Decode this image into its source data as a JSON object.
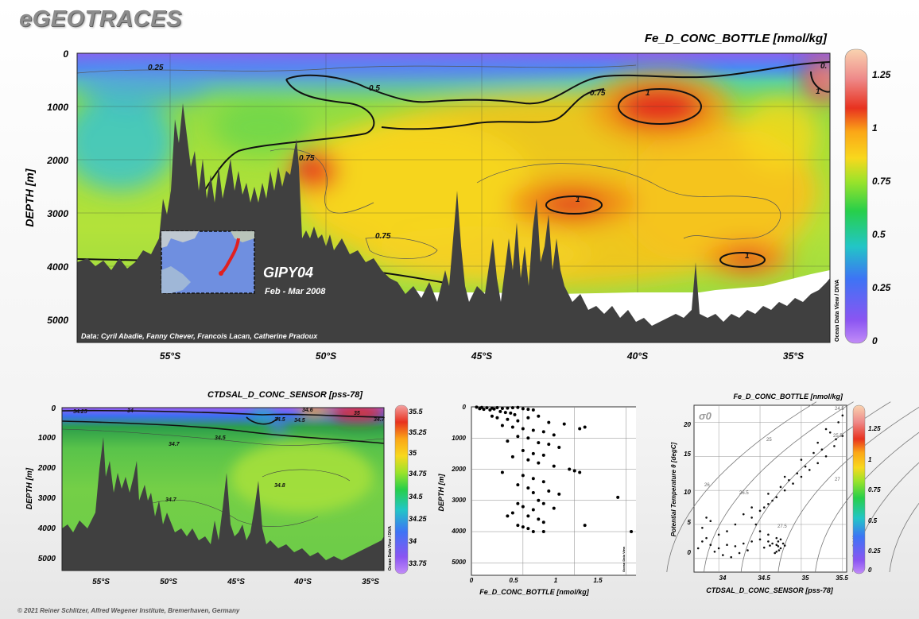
{
  "brand": "eGEOTRACES",
  "footer": "© 2021 Reiner Schlitzer, Alfred Wegener Institute, Bremerhaven, Germany",
  "main_section": {
    "title": "Fe_D_CONC_BOTTLE [nmol/kg]",
    "ylabel": "DEPTH [m]",
    "y_ticks": [
      "0",
      "1000",
      "2000",
      "3000",
      "4000",
      "5000"
    ],
    "x_ticks": [
      "55°S",
      "50°S",
      "45°S",
      "40°S",
      "35°S"
    ],
    "cruise": "GIPY04",
    "dates": "Feb - Mar 2008",
    "credits": "Data: Cyril Abadie, Fanny Chever, Francois Lacan, Catherine Pradoux",
    "odv_label": "Ocean Data View / DIVA",
    "contour_labels": [
      "0.25",
      "0.5",
      "0.75",
      "1",
      "0.75",
      "1",
      "0.75",
      "1",
      "1",
      "0."
    ],
    "colorbar_ticks": [
      "1.25",
      "1",
      "0.75",
      "0.5",
      "0.25",
      "0"
    ]
  },
  "salinity_section": {
    "title": "CTDSAL_D_CONC_SENSOR [pss-78]",
    "ylabel": "DEPTH [m]",
    "y_ticks": [
      "0",
      "1000",
      "2000",
      "3000",
      "4000",
      "5000"
    ],
    "x_ticks": [
      "55°S",
      "50°S",
      "45°S",
      "40°S",
      "35°S"
    ],
    "odv_label": "Ocean Data View / DIVA",
    "contour_labels": [
      "34.25",
      "34",
      "34.5",
      "34.7",
      "34.5",
      "34.8",
      "34.7",
      "34.6",
      "34.5",
      "35",
      "34.7"
    ],
    "colorbar_ticks": [
      "35.5",
      "35.25",
      "35",
      "34.75",
      "34.5",
      "34.25",
      "34",
      "33.75"
    ]
  },
  "scatter_plot": {
    "xlabel": "Fe_D_CONC_BOTTLE [nmol/kg]",
    "ylabel": "DEPTH [m]",
    "odv_label": "Ocean Data View",
    "x_ticks": [
      "0",
      "0.5",
      "1",
      "1.5"
    ],
    "y_ticks": [
      "0",
      "1000",
      "2000",
      "3000",
      "4000",
      "5000"
    ]
  },
  "ts_plot": {
    "title": "Fe_D_CONC_BOTTLE [nmol/kg]",
    "xlabel": "CTDSAL_D_CONC_SENSOR [pss-78]",
    "ylabel": "Potential Temperature θ [degC]",
    "sigma_label": "σ0",
    "odv_label": "Ocean Data View",
    "x_ticks": [
      "34",
      "34.5",
      "35",
      "35.5"
    ],
    "y_ticks": [
      "20",
      "15",
      "10",
      "5",
      "0"
    ],
    "isopycnal_labels": [
      "24.5",
      "25",
      "25.5",
      "26",
      "26.5",
      "27",
      "27.5"
    ],
    "colorbar_ticks": [
      "1.25",
      "1",
      "0.75",
      "0.5",
      "0.25",
      "0"
    ]
  },
  "colors": {
    "scale": [
      "#9b3cf0",
      "#3b6cf5",
      "#22c2c8",
      "#2fd24c",
      "#9be32a",
      "#f7d51d",
      "#fbb117",
      "#e82a1f",
      "#ee8a8a",
      "#f7c7a6"
    ],
    "land": "#404040"
  },
  "chart_data": [
    {
      "type": "heatmap",
      "title": "Fe_D_CONC_BOTTLE [nmol/kg]",
      "xlabel": "",
      "ylabel": "DEPTH [m]",
      "xlim": [
        -58,
        -34
      ],
      "ylim": [
        5400,
        0
      ],
      "colorbar_range": [
        0,
        1.35
      ],
      "highs": [
        {
          "lat": -39.5,
          "depth": 900,
          "value": 1.05
        },
        {
          "lat": -42.3,
          "depth": 2800,
          "value": 1.0
        },
        {
          "lat": -36.0,
          "depth": 3850,
          "value": 1.0
        },
        {
          "lat": -50.5,
          "depth": 2200,
          "value": 0.95
        },
        {
          "lat": -34.2,
          "depth": 500,
          "value": 1.2
        }
      ]
    },
    {
      "type": "heatmap",
      "title": "CTDSAL_D_CONC_SENSOR [pss-78]",
      "ylabel": "DEPTH [m]",
      "xlim": [
        -58,
        -34
      ],
      "ylim": [
        5400,
        0
      ],
      "colorbar_range": [
        33.7,
        35.55
      ]
    },
    {
      "type": "scatter",
      "xlabel": "Fe_D_CONC_BOTTLE [nmol/kg]",
      "ylabel": "DEPTH [m]",
      "xlim": [
        0,
        1.75
      ],
      "ylim": [
        5400,
        0
      ],
      "points": [
        [
          0.05,
          10
        ],
        [
          0.1,
          20
        ],
        [
          0.15,
          30
        ],
        [
          0.2,
          40
        ],
        [
          0.25,
          25
        ],
        [
          0.08,
          60
        ],
        [
          0.12,
          80
        ],
        [
          0.18,
          100
        ],
        [
          0.22,
          70
        ],
        [
          0.3,
          50
        ],
        [
          0.35,
          40
        ],
        [
          0.4,
          30
        ],
        [
          0.45,
          20
        ],
        [
          0.5,
          60
        ],
        [
          0.55,
          80
        ],
        [
          0.6,
          100
        ],
        [
          0.28,
          150
        ],
        [
          0.33,
          180
        ],
        [
          0.38,
          200
        ],
        [
          0.42,
          250
        ],
        [
          0.2,
          300
        ],
        [
          0.25,
          350
        ],
        [
          0.35,
          400
        ],
        [
          0.45,
          450
        ],
        [
          0.55,
          350
        ],
        [
          0.65,
          300
        ],
        [
          0.75,
          500
        ],
        [
          0.9,
          550
        ],
        [
          1.05,
          700
        ],
        [
          1.1,
          650
        ],
        [
          0.3,
          600
        ],
        [
          0.4,
          650
        ],
        [
          0.5,
          700
        ],
        [
          0.6,
          750
        ],
        [
          0.7,
          800
        ],
        [
          0.8,
          900
        ],
        [
          0.45,
          950
        ],
        [
          0.55,
          1000
        ],
        [
          0.35,
          1100
        ],
        [
          0.65,
          1150
        ],
        [
          0.75,
          1200
        ],
        [
          0.85,
          1300
        ],
        [
          0.5,
          1400
        ],
        [
          0.6,
          1500
        ],
        [
          0.7,
          1550
        ],
        [
          0.4,
          1600
        ],
        [
          0.55,
          1700
        ],
        [
          0.65,
          1800
        ],
        [
          0.8,
          1900
        ],
        [
          0.95,
          2000
        ],
        [
          1.0,
          2050
        ],
        [
          1.05,
          2100
        ],
        [
          0.3,
          2100
        ],
        [
          0.5,
          2200
        ],
        [
          0.6,
          2300
        ],
        [
          0.7,
          2400
        ],
        [
          0.45,
          2500
        ],
        [
          0.55,
          2600
        ],
        [
          0.75,
          2700
        ],
        [
          0.85,
          2800
        ],
        [
          1.42,
          2900
        ],
        [
          0.65,
          3000
        ],
        [
          0.7,
          3100
        ],
        [
          0.5,
          3200
        ],
        [
          0.6,
          3300
        ],
        [
          0.4,
          3400
        ],
        [
          0.55,
          3500
        ],
        [
          0.65,
          3600
        ],
        [
          0.7,
          3700
        ],
        [
          1.1,
          3800
        ],
        [
          0.5,
          3850
        ],
        [
          0.55,
          3900
        ],
        [
          0.6,
          4000
        ],
        [
          0.7,
          4000
        ],
        [
          1.55,
          4000
        ],
        [
          0.45,
          3800
        ],
        [
          0.35,
          3500
        ],
        [
          0.45,
          3100
        ],
        [
          0.6,
          2750
        ],
        [
          0.8,
          3250
        ]
      ]
    },
    {
      "type": "scatter",
      "xlabel": "CTDSAL_D_CONC_SENSOR [pss-78]",
      "ylabel": "Potential Temperature θ [degC]",
      "xlim": [
        33.7,
        35.55
      ],
      "ylim": [
        -2,
        22.5
      ],
      "isopycnals": [
        24.5,
        25,
        25.5,
        26,
        26.5,
        27,
        27.5
      ],
      "points": [
        [
          33.75,
          1.5
        ],
        [
          33.8,
          2.5
        ],
        [
          33.85,
          3.0
        ],
        [
          33.8,
          4.5
        ],
        [
          33.9,
          2.0
        ],
        [
          33.95,
          1.0
        ],
        [
          34.0,
          1.5
        ],
        [
          34.1,
          2.0
        ],
        [
          34.2,
          1.8
        ],
        [
          34.3,
          2.2
        ],
        [
          34.4,
          2.5
        ],
        [
          34.5,
          2.8
        ],
        [
          34.6,
          2.5
        ],
        [
          34.65,
          2.2
        ],
        [
          34.7,
          2.0
        ],
        [
          34.72,
          1.8
        ],
        [
          34.75,
          1.5
        ],
        [
          34.73,
          1.2
        ],
        [
          34.7,
          1.0
        ],
        [
          34.68,
          0.8
        ],
        [
          34.72,
          2.5
        ],
        [
          34.7,
          3.0
        ],
        [
          34.75,
          2.8
        ],
        [
          34.78,
          2.2
        ],
        [
          34.8,
          1.9
        ],
        [
          34.6,
          3.5
        ],
        [
          34.5,
          4.0
        ],
        [
          34.45,
          5.0
        ],
        [
          34.4,
          6.0
        ],
        [
          34.5,
          7.0
        ],
        [
          34.6,
          8.0
        ],
        [
          34.7,
          9.0
        ],
        [
          34.8,
          10.0
        ],
        [
          34.9,
          11.0
        ],
        [
          35.0,
          12.0
        ],
        [
          35.1,
          13.0
        ],
        [
          35.2,
          14.0
        ],
        [
          35.3,
          15.0
        ],
        [
          35.4,
          16.5
        ],
        [
          35.5,
          18.0
        ],
        [
          35.45,
          20.0
        ],
        [
          35.5,
          21.0
        ],
        [
          35.3,
          19.0
        ],
        [
          35.2,
          17.0
        ],
        [
          35.0,
          14.5
        ],
        [
          34.8,
          12.0
        ],
        [
          34.6,
          9.5
        ],
        [
          34.4,
          7.5
        ],
        [
          34.3,
          6.5
        ],
        [
          34.2,
          5.0
        ],
        [
          34.1,
          4.0
        ],
        [
          34.0,
          3.5
        ],
        [
          33.9,
          5.5
        ],
        [
          33.85,
          6.0
        ],
        [
          34.05,
          0.5
        ],
        [
          34.15,
          0.2
        ],
        [
          34.25,
          0.8
        ],
        [
          34.35,
          1.2
        ],
        [
          34.55,
          1.6
        ],
        [
          34.62,
          1.9
        ],
        [
          35.35,
          18.5
        ],
        [
          35.42,
          17.5
        ],
        [
          35.25,
          16.0
        ],
        [
          35.15,
          15.5
        ],
        [
          35.05,
          13.5
        ],
        [
          34.95,
          12.5
        ],
        [
          34.85,
          11.5
        ],
        [
          34.75,
          10.5
        ],
        [
          34.65,
          8.5
        ],
        [
          34.55,
          7.5
        ]
      ]
    }
  ]
}
